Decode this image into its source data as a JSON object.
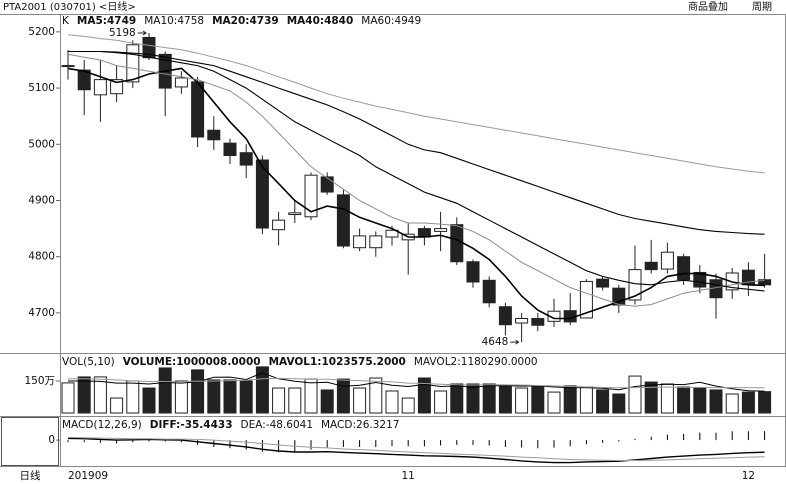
{
  "header": {
    "title": "PTA2001 (030701) <日线>",
    "buttons": [
      "商品叠加",
      "周期"
    ]
  },
  "period_label": "日线",
  "chart_data": [
    {
      "type": "candlestick",
      "title": "K",
      "up_color": "#ffffff",
      "down_color": "#222222",
      "open": [
        5140,
        5132,
        5088,
        5090,
        5111,
        5190,
        5160,
        5102,
        5111,
        5025,
        5002,
        4985,
        4972,
        4848,
        4875,
        4871,
        4942,
        4910,
        4816,
        4816,
        4835,
        4830,
        4850,
        4845,
        4857,
        4791,
        4758,
        4711,
        4682,
        4690,
        4685,
        4704,
        4691,
        4760,
        4744,
        4723,
        4790,
        4778,
        4800,
        4772,
        4759,
        4741,
        4776,
        4759
      ],
      "high": [
        5168,
        5150,
        5150,
        5140,
        5185,
        5198,
        5165,
        5130,
        5120,
        5050,
        5010,
        5000,
        4980,
        4880,
        4900,
        4950,
        4950,
        4920,
        4850,
        4845,
        4855,
        4860,
        4855,
        4880,
        4870,
        4795,
        4765,
        4718,
        4700,
        4700,
        4725,
        4735,
        4760,
        4765,
        4750,
        4820,
        4830,
        4825,
        4805,
        4785,
        4770,
        4780,
        4790,
        4805
      ],
      "low": [
        5115,
        5052,
        5040,
        5075,
        5100,
        5150,
        5050,
        5090,
        4995,
        4990,
        4965,
        4940,
        4840,
        4820,
        4860,
        4865,
        4910,
        4815,
        4810,
        4800,
        4820,
        4768,
        4820,
        4810,
        4785,
        4745,
        4710,
        4660,
        4648,
        4668,
        4675,
        4678,
        4690,
        4740,
        4700,
        4715,
        4770,
        4770,
        4750,
        4735,
        4690,
        4725,
        4730,
        4745
      ],
      "close": [
        5140,
        5097,
        5115,
        5115,
        5177,
        5154,
        5100,
        5118,
        5013,
        5008,
        4980,
        4963,
        4851,
        4865,
        4878,
        4945,
        4915,
        4819,
        4837,
        4837,
        4847,
        4840,
        4835,
        4850,
        4791,
        4755,
        4718,
        4679,
        4690,
        4678,
        4703,
        4684,
        4756,
        4746,
        4714,
        4777,
        4777,
        4808,
        4759,
        4746,
        4727,
        4771,
        4750,
        4750
      ],
      "series": [
        {
          "name": "MA5:4749",
          "color": "#000000",
          "width": 1.6,
          "values": [
            5135,
            5130,
            5120,
            5110,
            5115,
            5125,
            5130,
            5135,
            5110,
            5075,
            5040,
            5010,
            4960,
            4930,
            4900,
            4880,
            4890,
            4885,
            4870,
            4860,
            4850,
            4835,
            4835,
            4838,
            4830,
            4815,
            4795,
            4765,
            4730,
            4705,
            4690,
            4690,
            4700,
            4710,
            4720,
            4730,
            4745,
            4765,
            4770,
            4770,
            4765,
            4755,
            4750,
            4749
          ]
        },
        {
          "name": "MA10:4758",
          "color": "#8c8c8c",
          "width": 1,
          "values": [
            5160,
            5155,
            5150,
            5140,
            5135,
            5130,
            5125,
            5120,
            5115,
            5105,
            5095,
            5075,
            5050,
            5020,
            4990,
            4960,
            4940,
            4920,
            4900,
            4885,
            4870,
            4860,
            4860,
            4858,
            4855,
            4845,
            4830,
            4810,
            4790,
            4775,
            4760,
            4745,
            4735,
            4725,
            4715,
            4712,
            4715,
            4725,
            4735,
            4740,
            4745,
            4750,
            4755,
            4758
          ]
        },
        {
          "name": "MA20:4739",
          "color": "#000000",
          "width": 1.1,
          "values": [
            5165,
            5165,
            5165,
            5163,
            5160,
            5155,
            5150,
            5145,
            5140,
            5130,
            5115,
            5100,
            5080,
            5060,
            5040,
            5025,
            5010,
            4995,
            4980,
            4960,
            4945,
            4930,
            4915,
            4905,
            4895,
            4880,
            4865,
            4850,
            4835,
            4820,
            4805,
            4790,
            4775,
            4765,
            4758,
            4752,
            4750,
            4755,
            4758,
            4755,
            4750,
            4745,
            4742,
            4739
          ]
        },
        {
          "name": "MA40:4840",
          "color": "#000000",
          "width": 1.1,
          "values": [
            5165,
            5165,
            5165,
            5164,
            5162,
            5160,
            5155,
            5150,
            5145,
            5140,
            5130,
            5120,
            5110,
            5100,
            5090,
            5080,
            5070,
            5058,
            5045,
            5030,
            5015,
            5000,
            4990,
            4985,
            4975,
            4965,
            4955,
            4945,
            4935,
            4925,
            4915,
            4905,
            4895,
            4885,
            4875,
            4868,
            4863,
            4858,
            4853,
            4848,
            4845,
            4843,
            4841,
            4840
          ]
        },
        {
          "name": "MA60:4949",
          "color": "#9a9a9a",
          "width": 1,
          "values": [
            5195,
            5192,
            5188,
            5185,
            5180,
            5176,
            5172,
            5168,
            5162,
            5155,
            5148,
            5140,
            5130,
            5120,
            5110,
            5100,
            5090,
            5082,
            5075,
            5068,
            5062,
            5056,
            5050,
            5045,
            5040,
            5035,
            5030,
            5025,
            5020,
            5015,
            5010,
            5005,
            5000,
            4995,
            4990,
            4985,
            4980,
            4975,
            4970,
            4965,
            4960,
            4956,
            4952,
            4949
          ]
        }
      ],
      "annotations": [
        {
          "value": 5198,
          "x": 5
        },
        {
          "value": 4648,
          "x": 28
        }
      ],
      "ylim": [
        4634,
        5230
      ],
      "yticks": [
        4700,
        4800,
        4900,
        5000,
        5100,
        5200
      ]
    },
    {
      "type": "bar",
      "title": "VOL(5,10)",
      "name": "VOLUME:1000008.0000",
      "values": [
        141,
        169,
        169,
        70,
        150,
        117,
        211,
        150,
        202,
        155,
        155,
        150,
        216,
        117,
        117,
        159,
        108,
        159,
        117,
        164,
        103,
        70,
        164,
        103,
        136,
        136,
        136,
        127,
        117,
        127,
        98,
        127,
        122,
        108,
        89,
        173,
        145,
        136,
        122,
        117,
        108,
        89,
        98,
        100
      ],
      "series": [
        {
          "name": "MAVOL1:1023575.2000",
          "color": "#000000",
          "values": [
            150,
            150,
            148,
            140,
            140,
            136,
            143,
            140,
            146,
            167,
            168,
            157,
            188,
            160,
            149,
            141,
            144,
            125,
            130,
            143,
            130,
            124,
            134,
            124,
            127,
            120,
            128,
            128,
            126,
            128,
            122,
            119,
            118,
            116,
            109,
            124,
            131,
            135,
            133,
            144,
            126,
            114,
            104,
            102
          ]
        },
        {
          "name": "MAVOL2:1180290.0000",
          "color": "#9a9a9a",
          "values": [
            160,
            160,
            158,
            155,
            150,
            148,
            147,
            147,
            149,
            150,
            152,
            153,
            160,
            163,
            160,
            158,
            158,
            154,
            152,
            148,
            146,
            140,
            138,
            135,
            132,
            131,
            132,
            132,
            131,
            129,
            127,
            124,
            122,
            120,
            118,
            119,
            120,
            122,
            120,
            120,
            118,
            119,
            119,
            118
          ]
        }
      ],
      "ylim": [
        0,
        267
      ],
      "yticks": [
        {
          "value": 150,
          "label": "150万"
        }
      ]
    },
    {
      "type": "macd",
      "title": "MACD(12,26,9)",
      "categories": [
        "201909",
        null,
        null,
        null,
        null,
        null,
        null,
        null,
        null,
        null,
        null,
        null,
        null,
        null,
        null,
        null,
        null,
        null,
        null,
        null,
        null,
        "11",
        null,
        null,
        null,
        null,
        null,
        null,
        null,
        null,
        null,
        null,
        null,
        null,
        null,
        null,
        null,
        null,
        null,
        null,
        null,
        null,
        "12",
        null
      ],
      "histogram": {
        "name": "MACD:26.3217",
        "color": "#000000",
        "values": [
          -6,
          -6,
          -8,
          -10,
          -6,
          -4,
          -4,
          -6,
          -14,
          -20,
          -24,
          -28,
          -34,
          -36,
          -34,
          -28,
          -22,
          -20,
          -20,
          -20,
          -18,
          -18,
          -18,
          -16,
          -14,
          -14,
          -16,
          -20,
          -22,
          -24,
          -22,
          -18,
          -12,
          -8,
          -4,
          4,
          10,
          16,
          18,
          22,
          22,
          26,
          26,
          26.3217
        ]
      },
      "series": [
        {
          "name": "DIFF:-35.4433",
          "color": "#000000",
          "width": 1.4,
          "values": [
            5,
            4,
            2,
            0,
            1,
            2,
            1,
            0,
            -5,
            -10,
            -15,
            -20,
            -27,
            -32,
            -35,
            -35,
            -34,
            -36,
            -38,
            -40,
            -42,
            -44,
            -46,
            -47,
            -48,
            -50,
            -53,
            -57,
            -61,
            -64,
            -66,
            -66,
            -64,
            -63,
            -62,
            -58,
            -54,
            -50,
            -47,
            -44,
            -42,
            -39,
            -37,
            -35.4433
          ]
        },
        {
          "name": "DEA:-48.6041",
          "color": "#9a9a9a",
          "width": 1,
          "values": [
            8,
            7,
            6,
            5,
            4,
            4,
            3,
            3,
            2,
            0,
            -3,
            -6,
            -10,
            -14,
            -18,
            -21,
            -23,
            -26,
            -28,
            -30,
            -33,
            -35,
            -37,
            -39,
            -41,
            -43,
            -45,
            -47,
            -50,
            -52,
            -55,
            -57,
            -58,
            -59,
            -60,
            -60,
            -59,
            -58,
            -56,
            -55,
            -53,
            -52,
            -50,
            -48.6041
          ]
        }
      ],
      "ylim": [
        -76,
        59
      ],
      "yticks": [
        0
      ]
    }
  ]
}
